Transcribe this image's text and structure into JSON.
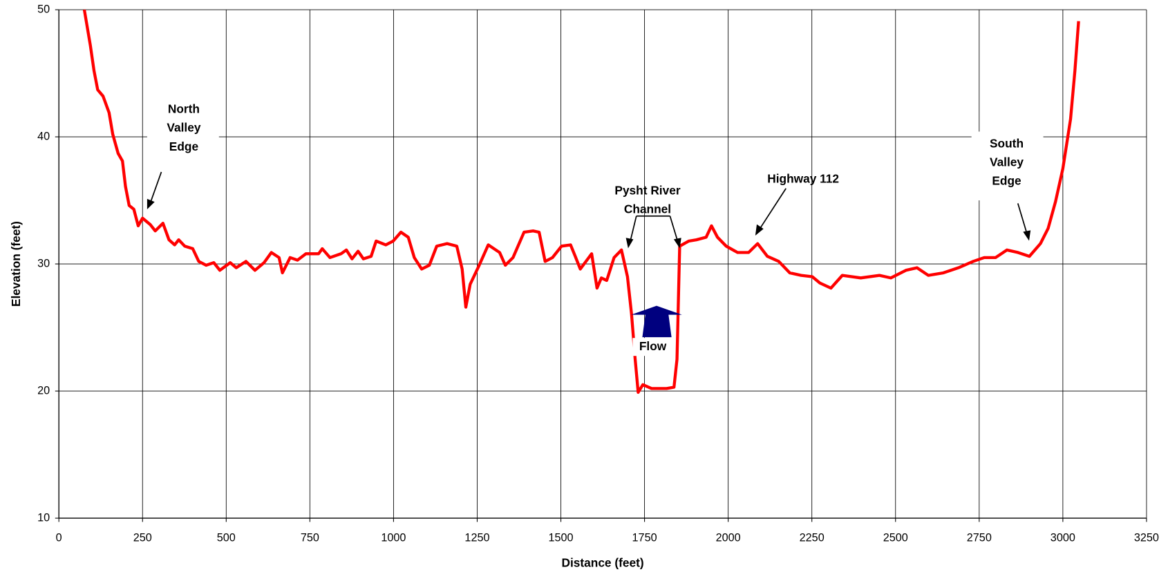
{
  "chart_data": {
    "type": "line",
    "xlabel": "Distance (feet)",
    "ylabel": "Elevation (feet)",
    "annotations": {
      "north": [
        "North",
        "Valley",
        "Edge"
      ],
      "channel": [
        "Pysht River",
        "Channel"
      ],
      "highway": "Highway 112",
      "south": [
        "South",
        "Valley",
        "Edge"
      ],
      "flow": "Flow"
    },
    "xlim": [
      0,
      3250
    ],
    "xticks": [
      0,
      250,
      500,
      750,
      1000,
      1250,
      1500,
      1750,
      2000,
      2250,
      2500,
      2750,
      3000,
      3250
    ],
    "ylim": [
      10,
      50
    ],
    "yticks": [
      10,
      20,
      30,
      40,
      50
    ],
    "grid": true,
    "series": [
      {
        "color": "#ff0000",
        "x": [
          76,
          94,
          105,
          116,
          132,
          150,
          161,
          177,
          190,
          199,
          210,
          224,
          237,
          250,
          273,
          288,
          311,
          329,
          346,
          358,
          376,
          400,
          418,
          440,
          463,
          481,
          512,
          530,
          559,
          586,
          613,
          635,
          658,
          668,
          691,
          713,
          738,
          776,
          787,
          810,
          843,
          859,
          876,
          894,
          910,
          933,
          948,
          977,
          999,
          1022,
          1044,
          1062,
          1084,
          1107,
          1129,
          1160,
          1189,
          1205,
          1216,
          1229,
          1256,
          1283,
          1317,
          1334,
          1357,
          1390,
          1417,
          1435,
          1453,
          1475,
          1502,
          1529,
          1543,
          1558,
          1592,
          1608,
          1621,
          1637,
          1659,
          1681,
          1699,
          1711,
          1722,
          1731,
          1745,
          1771,
          1816,
          1838,
          1847,
          1855,
          1882,
          1905,
          1934,
          1950,
          1968,
          1994,
          2028,
          2061,
          2088,
          2117,
          2151,
          2184,
          2218,
          2251,
          2274,
          2307,
          2341,
          2396,
          2452,
          2486,
          2531,
          2564,
          2598,
          2643,
          2688,
          2732,
          2765,
          2799,
          2833,
          2866,
          2900,
          2933,
          2956,
          2978,
          3000,
          3023,
          3036,
          3047
        ],
        "values": [
          50,
          47.2,
          45.2,
          43.7,
          43.2,
          41.9,
          40.2,
          38.7,
          38.1,
          36.1,
          34.6,
          34.3,
          33.0,
          33.6,
          33.1,
          32.6,
          33.2,
          31.9,
          31.5,
          31.9,
          31.4,
          31.2,
          30.2,
          29.9,
          30.1,
          29.5,
          30.1,
          29.7,
          30.2,
          29.5,
          30.1,
          30.9,
          30.5,
          29.3,
          30.5,
          30.3,
          30.8,
          30.8,
          31.2,
          30.5,
          30.8,
          31.1,
          30.4,
          31.0,
          30.4,
          30.6,
          31.8,
          31.5,
          31.8,
          32.5,
          32.1,
          30.5,
          29.6,
          29.9,
          31.4,
          31.6,
          31.4,
          29.6,
          26.6,
          28.4,
          29.9,
          31.5,
          30.9,
          29.9,
          30.5,
          32.5,
          32.6,
          32.5,
          30.2,
          30.5,
          31.4,
          31.5,
          30.6,
          29.6,
          30.8,
          28.1,
          28.9,
          28.7,
          30.5,
          31.1,
          29.0,
          26.1,
          22.5,
          19.9,
          20.5,
          20.2,
          20.2,
          20.3,
          22.5,
          31.4,
          31.8,
          31.9,
          32.1,
          33.0,
          32.1,
          31.4,
          30.9,
          30.9,
          31.6,
          30.6,
          30.2,
          29.3,
          29.1,
          29.0,
          28.5,
          28.1,
          29.1,
          28.9,
          29.1,
          28.9,
          29.5,
          29.7,
          29.1,
          29.3,
          29.7,
          30.2,
          30.5,
          30.5,
          31.1,
          30.9,
          30.6,
          31.6,
          32.8,
          34.9,
          37.5,
          41.4,
          45.2,
          49.1
        ]
      }
    ]
  }
}
